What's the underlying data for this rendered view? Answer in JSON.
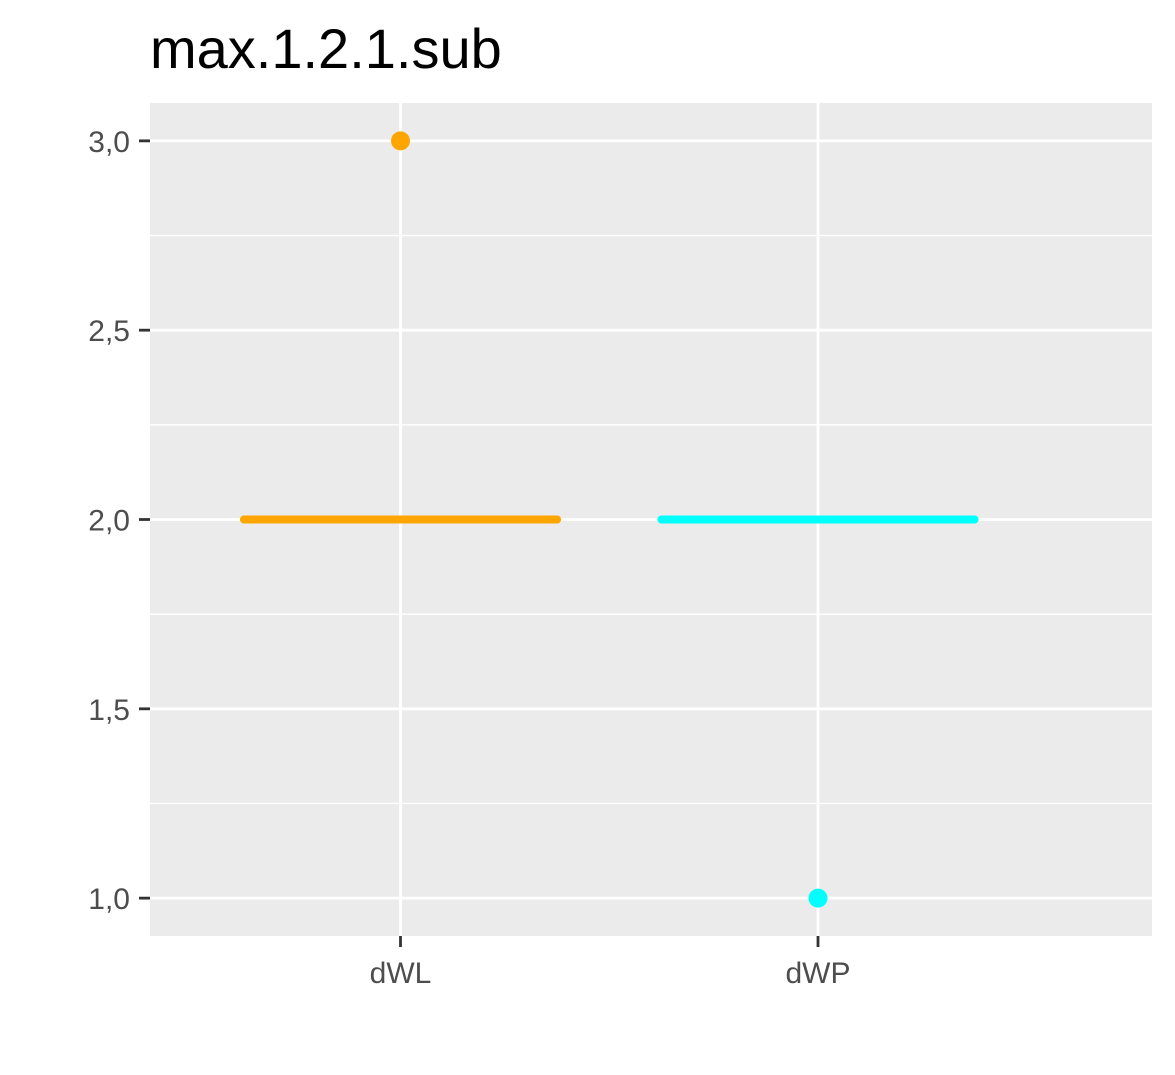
{
  "chart_data": {
    "type": "scatter",
    "title": "max.1.2.1.sub",
    "xlabel": "",
    "ylabel": "",
    "categories": [
      "dWL",
      "dWP"
    ],
    "y_ticks": [
      "1,0",
      "1,5",
      "2,0",
      "2,5",
      "3,0"
    ],
    "y_tick_values": [
      1.0,
      1.5,
      2.0,
      2.5,
      3.0
    ],
    "ylim": [
      0.9,
      3.1
    ],
    "grid": true,
    "legend": "none",
    "series": [
      {
        "category": "dWL",
        "color": "#FFA500",
        "point": 3.0,
        "level": 2.0
      },
      {
        "category": "dWP",
        "color": "#00FFFF",
        "point": 1.0,
        "level": 2.0
      }
    ]
  }
}
